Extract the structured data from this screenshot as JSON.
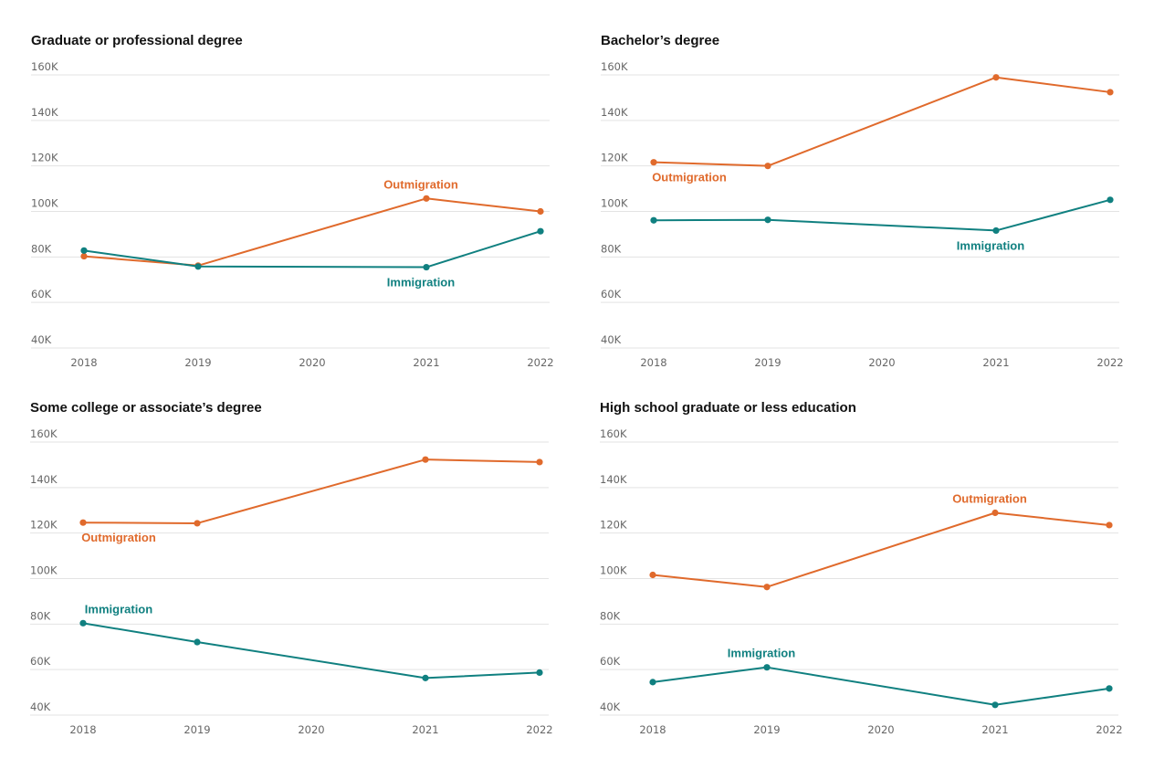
{
  "colors": {
    "outmigration": "#e06a2c",
    "immigration": "#108080"
  },
  "chart_data": [
    {
      "type": "line",
      "title": "Graduate or professional degree",
      "x": [
        "2018",
        "2019",
        "2020",
        "2021",
        "2022"
      ],
      "ylim": [
        40000,
        160000
      ],
      "yticks": [
        {
          "value": 40000,
          "label": "40K"
        },
        {
          "value": 60000,
          "label": "60K"
        },
        {
          "value": 80000,
          "label": "80K"
        },
        {
          "value": 100000,
          "label": "100K"
        },
        {
          "value": 120000,
          "label": "120K"
        },
        {
          "value": 140000,
          "label": "140K"
        },
        {
          "value": 160000,
          "label": "160K"
        }
      ],
      "grid": true,
      "legend": "inline labels",
      "series": [
        {
          "name": "Outmigration",
          "color": "outmigration",
          "values": [
            80300,
            76200,
            null,
            105700,
            100000
          ],
          "label_anchor": "above",
          "label_at": 3
        },
        {
          "name": "Immigration",
          "color": "immigration",
          "values": [
            82800,
            75800,
            null,
            75500,
            91300
          ],
          "label_anchor": "below",
          "label_at": 3
        }
      ]
    },
    {
      "type": "line",
      "title": "Bachelor’s degree",
      "x": [
        "2018",
        "2019",
        "2020",
        "2021",
        "2022"
      ],
      "ylim": [
        40000,
        160000
      ],
      "yticks": [
        {
          "value": 40000,
          "label": "40K"
        },
        {
          "value": 60000,
          "label": "60K"
        },
        {
          "value": 80000,
          "label": "80K"
        },
        {
          "value": 100000,
          "label": "100K"
        },
        {
          "value": 120000,
          "label": "120K"
        },
        {
          "value": 140000,
          "label": "140K"
        },
        {
          "value": 160000,
          "label": "160K"
        }
      ],
      "grid": true,
      "legend": "inline labels",
      "series": [
        {
          "name": "Outmigration",
          "color": "outmigration",
          "values": [
            121600,
            120000,
            null,
            158900,
            152400
          ],
          "label_anchor": "below",
          "label_at": 0
        },
        {
          "name": "Immigration",
          "color": "immigration",
          "values": [
            96100,
            96300,
            null,
            91600,
            105100
          ],
          "label_anchor": "below",
          "label_at": 3
        }
      ]
    },
    {
      "type": "line",
      "title": "Some college or associate’s degree",
      "x": [
        "2018",
        "2019",
        "2020",
        "2021",
        "2022"
      ],
      "ylim": [
        40000,
        160000
      ],
      "yticks": [
        {
          "value": 40000,
          "label": "40K"
        },
        {
          "value": 60000,
          "label": "60K"
        },
        {
          "value": 80000,
          "label": "80K"
        },
        {
          "value": 100000,
          "label": "100K"
        },
        {
          "value": 120000,
          "label": "120K"
        },
        {
          "value": 140000,
          "label": "140K"
        },
        {
          "value": 160000,
          "label": "160K"
        }
      ],
      "grid": true,
      "legend": "inline labels",
      "series": [
        {
          "name": "Outmigration",
          "color": "outmigration",
          "values": [
            124600,
            124300,
            null,
            152300,
            151200
          ],
          "label_anchor": "below",
          "label_at": 0
        },
        {
          "name": "Immigration",
          "color": "immigration",
          "values": [
            80400,
            72100,
            null,
            56300,
            58700
          ],
          "label_anchor": "above",
          "label_at": 0
        }
      ]
    },
    {
      "type": "line",
      "title": "High school graduate or less education",
      "x": [
        "2018",
        "2019",
        "2020",
        "2021",
        "2022"
      ],
      "ylim": [
        40000,
        160000
      ],
      "yticks": [
        {
          "value": 40000,
          "label": "40K"
        },
        {
          "value": 60000,
          "label": "60K"
        },
        {
          "value": 80000,
          "label": "80K"
        },
        {
          "value": 100000,
          "label": "100K"
        },
        {
          "value": 120000,
          "label": "120K"
        },
        {
          "value": 140000,
          "label": "140K"
        },
        {
          "value": 160000,
          "label": "160K"
        }
      ],
      "grid": true,
      "legend": "inline labels",
      "series": [
        {
          "name": "Outmigration",
          "color": "outmigration",
          "values": [
            101600,
            96300,
            null,
            128900,
            123500
          ],
          "label_anchor": "above",
          "label_at": 3
        },
        {
          "name": "Immigration",
          "color": "immigration",
          "values": [
            54500,
            61000,
            null,
            44500,
            51700
          ],
          "label_anchor": "above",
          "label_at": 1
        }
      ]
    }
  ]
}
